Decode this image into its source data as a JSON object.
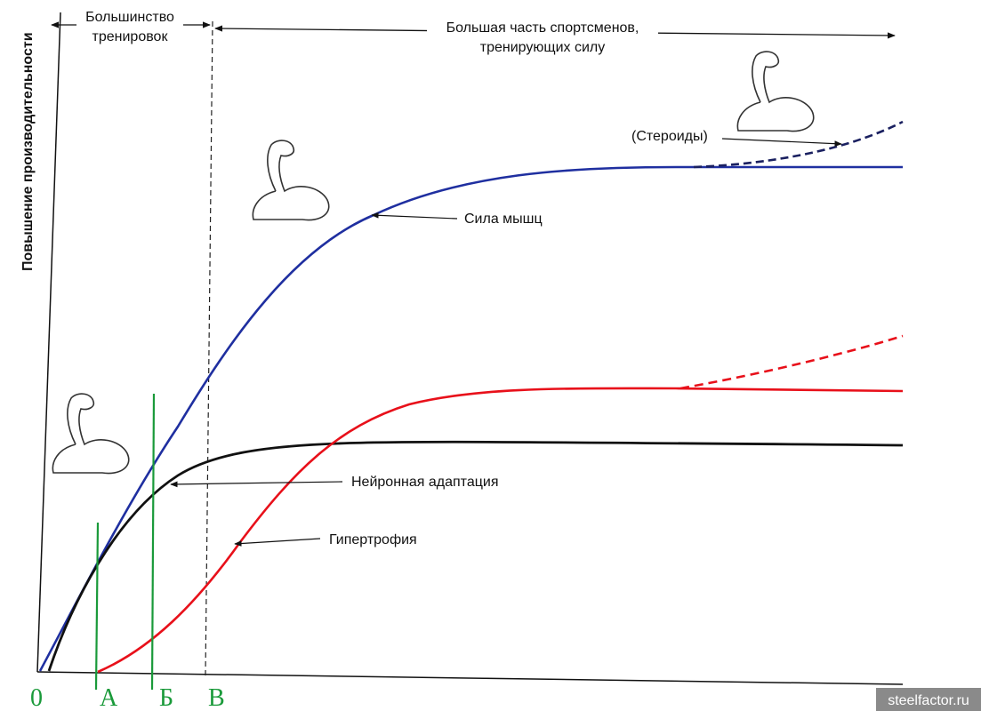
{
  "y_axis_label": "Повышение производительности",
  "top_left_label": [
    "Большинство",
    "тренировок"
  ],
  "top_right_label": [
    "Большая часть спортсменов,",
    "тренирующих силу"
  ],
  "steroids_label": "(Стероиды)",
  "curve_labels": {
    "strength": "Сила мышц",
    "neural": "Нейронная адаптация",
    "hypertrophy": "Гипертрофия"
  },
  "points": [
    "0",
    "А",
    "Б",
    "В"
  ],
  "watermark": "steelfactor.ru"
}
